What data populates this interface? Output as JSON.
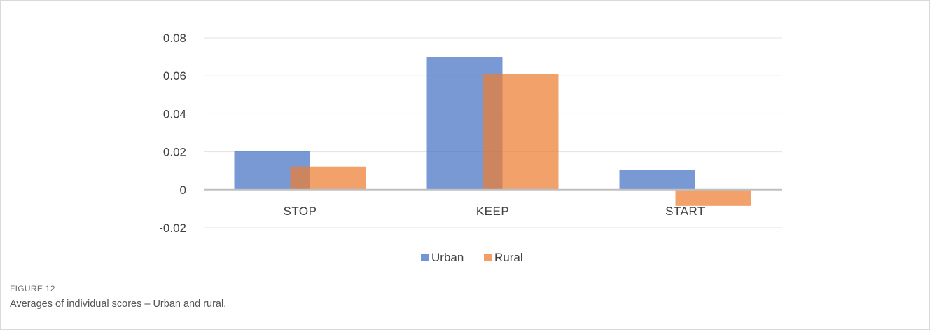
{
  "figure": {
    "label": "FIGURE 12",
    "caption": "Averages of individual scores – Urban and rural."
  },
  "chart_data": {
    "type": "bar",
    "categories": [
      "STOP",
      "KEEP",
      "START"
    ],
    "series": [
      {
        "name": "Urban",
        "values": [
          0.0205,
          0.07,
          0.0105
        ],
        "color": "#4472c4"
      },
      {
        "name": "Rural",
        "values": [
          0.0122,
          0.0608,
          -0.0085
        ],
        "color": "#ed7d31"
      }
    ],
    "ylim": [
      -0.02,
      0.08
    ],
    "yticks": [
      "0.08",
      "0.06",
      "0.04",
      "0.02",
      "0",
      "-0.02"
    ],
    "ytick_values": [
      0.08,
      0.06,
      0.04,
      0.02,
      0,
      -0.02
    ],
    "grid": true,
    "legend_position": "bottom",
    "title": "",
    "xlabel": "",
    "ylabel": ""
  }
}
